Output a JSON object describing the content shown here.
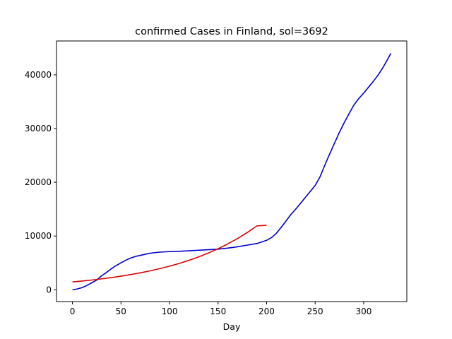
{
  "chart_data": {
    "type": "line",
    "title": "confirmed Cases in Finland, sol=3692",
    "xlabel": "Day",
    "ylabel": "",
    "xlim": [
      -16.4,
      344.4
    ],
    "ylim": [
      -2200,
      46300
    ],
    "xticks": [
      0,
      50,
      100,
      150,
      200,
      250,
      300
    ],
    "yticks": [
      0,
      10000,
      20000,
      30000,
      40000
    ],
    "grid": false,
    "series": [
      {
        "color": "#0000cc",
        "x": [
          0,
          5,
          10,
          15,
          20,
          25,
          30,
          35,
          40,
          45,
          50,
          55,
          60,
          65,
          70,
          75,
          80,
          85,
          90,
          95,
          100,
          110,
          120,
          130,
          140,
          150,
          160,
          170,
          180,
          190,
          200,
          205,
          210,
          215,
          220,
          225,
          230,
          235,
          240,
          245,
          250,
          255,
          260,
          265,
          270,
          275,
          280,
          285,
          290,
          295,
          300,
          305,
          310,
          315,
          320,
          325,
          328
        ],
        "y": [
          0,
          150,
          400,
          800,
          1300,
          1800,
          2600,
          3200,
          3900,
          4500,
          5000,
          5500,
          5900,
          6200,
          6400,
          6600,
          6800,
          6900,
          7000,
          7050,
          7100,
          7150,
          7250,
          7350,
          7450,
          7550,
          7750,
          8000,
          8300,
          8600,
          9200,
          9700,
          10500,
          11600,
          12800,
          14000,
          15000,
          16100,
          17200,
          18300,
          19400,
          21000,
          23200,
          25300,
          27300,
          29300,
          31100,
          32800,
          34400,
          35600,
          36600,
          37700,
          38800,
          40000,
          41400,
          43000,
          44000
        ]
      },
      {
        "color": "#dd0000",
        "x": [
          0,
          10,
          20,
          30,
          40,
          50,
          60,
          70,
          80,
          90,
          100,
          110,
          120,
          130,
          140,
          150,
          160,
          170,
          180,
          190,
          200
        ],
        "y": [
          1450,
          1620,
          1810,
          2020,
          2260,
          2520,
          2820,
          3150,
          3520,
          3930,
          4390,
          4900,
          5480,
          6120,
          6830,
          7630,
          8530,
          9520,
          10640,
          11880,
          12000
        ]
      }
    ]
  }
}
